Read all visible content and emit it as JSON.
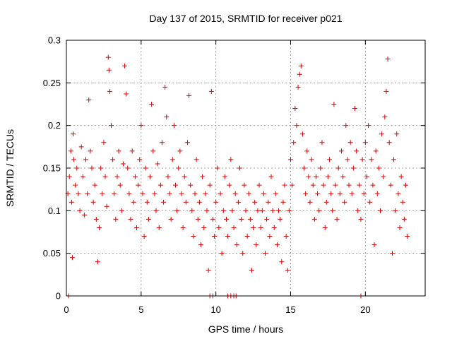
{
  "chart_data": {
    "type": "scatter",
    "title": "Day 137 of 2015, SRMTID for receiver p021",
    "xlabel": "GPS time / hours",
    "ylabel": "SRMTID / TECUs",
    "xlim": [
      0,
      24
    ],
    "ylim": [
      0,
      0.3
    ],
    "x_ticks": [
      0,
      5,
      10,
      15,
      20
    ],
    "x_tick_labels": [
      "0",
      "5",
      "10",
      "15",
      "20"
    ],
    "y_ticks": [
      0,
      0.05,
      0.1,
      0.15,
      0.2,
      0.25,
      0.3
    ],
    "y_tick_labels": [
      "0",
      "0.05",
      "0.1",
      "0.15",
      "0.2",
      "0.25",
      "0.3"
    ],
    "grid": true,
    "marker": "plus",
    "color": "#e00000",
    "series": [
      {
        "name": "SRMTID",
        "points": [
          [
            0.1,
            0.12
          ],
          [
            0.2,
            0.14
          ],
          [
            0.3,
            0.17
          ],
          [
            0.35,
            0.11
          ],
          [
            0.4,
            0.045
          ],
          [
            0.45,
            0.19
          ],
          [
            0.5,
            0.16
          ],
          [
            0.6,
            0.13
          ],
          [
            0.7,
            0.15
          ],
          [
            0.8,
            0.12
          ],
          [
            0.9,
            0.1
          ],
          [
            1.0,
            0.175
          ],
          [
            1.1,
            0.14
          ],
          [
            1.2,
            0.095
          ],
          [
            1.3,
            0.16
          ],
          [
            1.4,
            0.12
          ],
          [
            1.5,
            0.23
          ],
          [
            1.6,
            0.17
          ],
          [
            1.7,
            0.15
          ],
          [
            1.8,
            0.11
          ],
          [
            1.9,
            0.13
          ],
          [
            2.0,
            0.09
          ],
          [
            2.1,
            0.04
          ],
          [
            2.2,
            0.08
          ],
          [
            2.3,
            0.15
          ],
          [
            2.4,
            0.12
          ],
          [
            2.5,
            0.18
          ],
          [
            2.6,
            0.14
          ],
          [
            2.7,
            0.105
          ],
          [
            2.8,
            0.28
          ],
          [
            2.85,
            0.265
          ],
          [
            2.9,
            0.24
          ],
          [
            3.0,
            0.2
          ],
          [
            3.1,
            0.16
          ],
          [
            3.2,
            0.12
          ],
          [
            3.3,
            0.09
          ],
          [
            3.4,
            0.14
          ],
          [
            3.5,
            0.17
          ],
          [
            3.6,
            0.13
          ],
          [
            3.7,
            0.1
          ],
          [
            3.8,
            0.155
          ],
          [
            3.9,
            0.27
          ],
          [
            4.0,
            0.237
          ],
          [
            4.1,
            0.15
          ],
          [
            4.2,
            0.12
          ],
          [
            4.3,
            0.09
          ],
          [
            4.4,
            0.17
          ],
          [
            4.5,
            0.11
          ],
          [
            4.6,
            0.14
          ],
          [
            4.7,
            0.08
          ],
          [
            4.8,
            0.13
          ],
          [
            4.9,
            0.16
          ],
          [
            5.0,
            0.2
          ],
          [
            5.1,
            0.12
          ],
          [
            5.2,
            0.07
          ],
          [
            5.3,
            0.15
          ],
          [
            5.4,
            0.11
          ],
          [
            5.5,
            0.09
          ],
          [
            5.6,
            0.14
          ],
          [
            5.7,
            0.225
          ],
          [
            5.8,
            0.17
          ],
          [
            5.9,
            0.12
          ],
          [
            6.0,
            0.1
          ],
          [
            6.1,
            0.155
          ],
          [
            6.2,
            0.08
          ],
          [
            6.3,
            0.13
          ],
          [
            6.4,
            0.18
          ],
          [
            6.5,
            0.11
          ],
          [
            6.6,
            0.245
          ],
          [
            6.7,
            0.21
          ],
          [
            6.8,
            0.14
          ],
          [
            6.9,
            0.12
          ],
          [
            7.0,
            0.09
          ],
          [
            7.1,
            0.16
          ],
          [
            7.2,
            0.2
          ],
          [
            7.3,
            0.13
          ],
          [
            7.4,
            0.1
          ],
          [
            7.5,
            0.15
          ],
          [
            7.6,
            0.17
          ],
          [
            7.7,
            0.12
          ],
          [
            7.8,
            0.08
          ],
          [
            7.9,
            0.14
          ],
          [
            8.0,
            0.11
          ],
          [
            8.1,
            0.18
          ],
          [
            8.2,
            0.235
          ],
          [
            8.3,
            0.13
          ],
          [
            8.4,
            0.1
          ],
          [
            8.5,
            0.07
          ],
          [
            8.6,
            0.12
          ],
          [
            8.7,
            0.16
          ],
          [
            8.8,
            0.09
          ],
          [
            8.9,
            0.11
          ],
          [
            9.0,
            0.06
          ],
          [
            9.1,
            0.14
          ],
          [
            9.2,
            0.08
          ],
          [
            9.3,
            0.12
          ],
          [
            9.4,
            0.1
          ],
          [
            9.5,
            0.03
          ],
          [
            9.6,
            0.13
          ],
          [
            9.7,
            0.24
          ],
          [
            9.8,
            0.09
          ],
          [
            9.9,
            0.07
          ],
          [
            10.0,
            0.11
          ],
          [
            10.1,
            0.15
          ],
          [
            10.2,
            0.08
          ],
          [
            10.3,
            0.12
          ],
          [
            10.4,
            0.05
          ],
          [
            10.5,
            0.1
          ],
          [
            10.6,
            0.14
          ],
          [
            10.7,
            0.09
          ],
          [
            10.8,
            0.07
          ],
          [
            10.9,
            0.13
          ],
          [
            11.0,
            0.16
          ],
          [
            11.1,
            0.1
          ],
          [
            11.2,
            0.08
          ],
          [
            11.3,
            0.12
          ],
          [
            11.4,
            0.06
          ],
          [
            11.5,
            0.11
          ],
          [
            11.6,
            0.15
          ],
          [
            11.7,
            0.09
          ],
          [
            11.8,
            0.05
          ],
          [
            11.9,
            0.13
          ],
          [
            12.0,
            0.1
          ],
          [
            12.1,
            0.07
          ],
          [
            12.2,
            0.12
          ],
          [
            12.3,
            0.09
          ],
          [
            12.4,
            0.03
          ],
          [
            12.5,
            0.08
          ],
          [
            12.6,
            0.11
          ],
          [
            12.7,
            0.06
          ],
          [
            12.8,
            0.1
          ],
          [
            12.9,
            0.13
          ],
          [
            13.0,
            0.08
          ],
          [
            13.1,
            0.1
          ],
          [
            13.2,
            0.12
          ],
          [
            13.3,
            0.05
          ],
          [
            13.4,
            0.09
          ],
          [
            13.5,
            0.11
          ],
          [
            13.6,
            0.07
          ],
          [
            13.7,
            0.14
          ],
          [
            13.8,
            0.1
          ],
          [
            13.9,
            0.08
          ],
          [
            14.0,
            0.12
          ],
          [
            14.1,
            0.06
          ],
          [
            14.2,
            0.1
          ],
          [
            14.3,
            0.09
          ],
          [
            14.4,
            0.04
          ],
          [
            14.5,
            0.11
          ],
          [
            14.6,
            0.13
          ],
          [
            14.7,
            0.07
          ],
          [
            14.8,
            0.03
          ],
          [
            14.9,
            0.1
          ],
          [
            15.0,
            0.16
          ],
          [
            15.1,
            0.13
          ],
          [
            15.2,
            0.18
          ],
          [
            15.3,
            0.22
          ],
          [
            15.4,
            0.2
          ],
          [
            15.5,
            0.245
          ],
          [
            15.6,
            0.26
          ],
          [
            15.7,
            0.27
          ],
          [
            15.8,
            0.19
          ],
          [
            15.9,
            0.15
          ],
          [
            16.0,
            0.12
          ],
          [
            16.1,
            0.17
          ],
          [
            16.2,
            0.14
          ],
          [
            16.3,
            0.11
          ],
          [
            16.4,
            0.16
          ],
          [
            16.5,
            0.13
          ],
          [
            16.6,
            0.09
          ],
          [
            16.7,
            0.14
          ],
          [
            16.8,
            0.12
          ],
          [
            16.9,
            0.1
          ],
          [
            17.0,
            0.15
          ],
          [
            17.1,
            0.18
          ],
          [
            17.2,
            0.13
          ],
          [
            17.3,
            0.08
          ],
          [
            17.4,
            0.11
          ],
          [
            17.5,
            0.14
          ],
          [
            17.6,
            0.16
          ],
          [
            17.7,
            0.12
          ],
          [
            17.8,
            0.1
          ],
          [
            17.9,
            0.225
          ],
          [
            18.0,
            0.13
          ],
          [
            18.1,
            0.09
          ],
          [
            18.2,
            0.15
          ],
          [
            18.3,
            0.12
          ],
          [
            18.4,
            0.17
          ],
          [
            18.5,
            0.14
          ],
          [
            18.6,
            0.11
          ],
          [
            18.7,
            0.2
          ],
          [
            18.8,
            0.16
          ],
          [
            18.9,
            0.13
          ],
          [
            19.0,
            0.18
          ],
          [
            19.1,
            0.12
          ],
          [
            19.2,
            0.15
          ],
          [
            19.3,
            0.22
          ],
          [
            19.4,
            0.17
          ],
          [
            19.5,
            0.1
          ],
          [
            19.6,
            0.13
          ],
          [
            19.7,
            0.09
          ],
          [
            19.8,
            0.16
          ],
          [
            19.9,
            0.12
          ],
          [
            20.0,
            0.18
          ],
          [
            20.1,
            0.14
          ],
          [
            20.2,
            0.2
          ],
          [
            20.3,
            0.11
          ],
          [
            20.4,
            0.16
          ],
          [
            20.5,
            0.13
          ],
          [
            20.6,
            0.06
          ],
          [
            20.7,
            0.17
          ],
          [
            20.8,
            0.12
          ],
          [
            20.9,
            0.15
          ],
          [
            21.0,
            0.1
          ],
          [
            21.1,
            0.19
          ],
          [
            21.2,
            0.14
          ],
          [
            21.3,
            0.21
          ],
          [
            21.4,
            0.24
          ],
          [
            21.5,
            0.278
          ],
          [
            21.6,
            0.18
          ],
          [
            21.7,
            0.13
          ],
          [
            21.8,
            0.05
          ],
          [
            21.9,
            0.16
          ],
          [
            22.0,
            0.1
          ],
          [
            22.1,
            0.19
          ],
          [
            22.2,
            0.12
          ],
          [
            22.3,
            0.08
          ],
          [
            22.4,
            0.14
          ],
          [
            22.5,
            0.11
          ],
          [
            22.6,
            0.09
          ],
          [
            22.7,
            0.13
          ],
          [
            22.8,
            0.07
          ],
          [
            0.15,
            0.0
          ],
          [
            9.6,
            0.0
          ],
          [
            9.8,
            0.0
          ],
          [
            10.8,
            0.0
          ],
          [
            11.0,
            0.0
          ],
          [
            11.2,
            0.0
          ],
          [
            11.35,
            0.0
          ],
          [
            19.7,
            0.0
          ]
        ]
      }
    ]
  }
}
